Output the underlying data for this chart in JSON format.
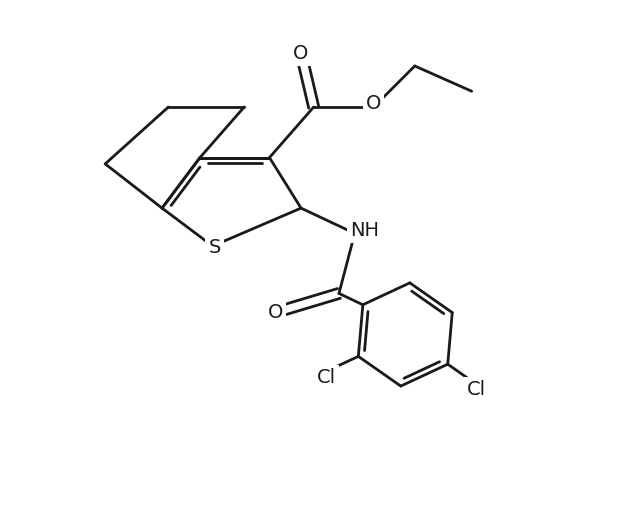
{
  "bg_color": "#ffffff",
  "line_color": "#1a1a1a",
  "line_width": 2.0,
  "font_size": 14,
  "fig_width": 6.4,
  "fig_height": 5.11,
  "xlim": [
    0.0,
    10.0
  ],
  "ylim": [
    0.0,
    8.0
  ]
}
